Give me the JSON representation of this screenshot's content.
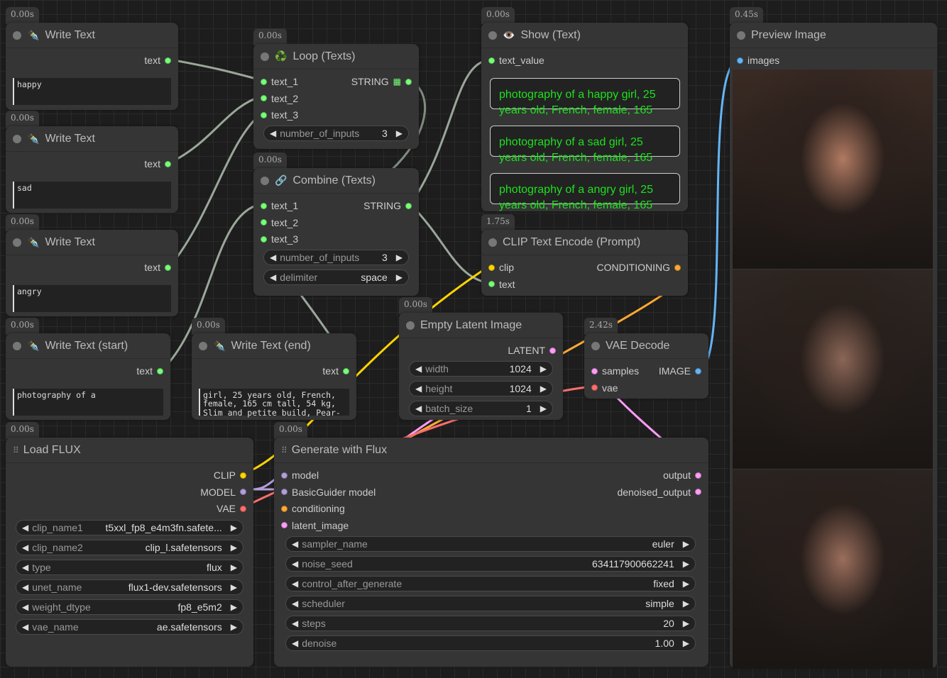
{
  "colors": {
    "string": "#77ff77",
    "clip": "#ffd500",
    "model": "#b39ddb",
    "vae": "#ff6e6e",
    "conditioning": "#ffa931",
    "latent": "#ff9cf9",
    "image": "#64b5f6"
  },
  "nodes": [
    {
      "id": "write_text_1",
      "title": "Write Text",
      "icon": "pen-nib-icon",
      "time": "0.00s",
      "inputs": [],
      "outputs": [
        {
          "label": "text",
          "type": "string"
        }
      ],
      "textarea": "happy"
    },
    {
      "id": "write_text_2",
      "title": "Write Text",
      "icon": "pen-nib-icon",
      "time": "0.00s",
      "inputs": [],
      "outputs": [
        {
          "label": "text",
          "type": "string"
        }
      ],
      "textarea": "sad"
    },
    {
      "id": "write_text_3",
      "title": "Write Text",
      "icon": "pen-nib-icon",
      "time": "0.00s",
      "inputs": [],
      "outputs": [
        {
          "label": "text",
          "type": "string"
        }
      ],
      "textarea": "angry"
    },
    {
      "id": "write_text_start",
      "title": "Write Text (start)",
      "icon": "pen-nib-icon",
      "time": "0.00s",
      "inputs": [],
      "outputs": [
        {
          "label": "text",
          "type": "string"
        }
      ],
      "textarea": "photography of a"
    },
    {
      "id": "write_text_end",
      "title": "Write Text (end)",
      "icon": "pen-nib-icon",
      "time": "0.00s",
      "inputs": [],
      "outputs": [
        {
          "label": "text",
          "type": "string"
        }
      ],
      "textarea": "girl, 25 years old, French, female, 165 cm tall, 54 kg, Slim and petite build, Pear-"
    },
    {
      "id": "loop_texts",
      "title": "Loop (Texts)",
      "icon": "recycle-icon",
      "time": "0.00s",
      "inputs": [
        {
          "label": "text_1",
          "type": "string"
        },
        {
          "label": "text_2",
          "type": "string"
        },
        {
          "label": "text_3",
          "type": "string"
        }
      ],
      "outputs": [
        {
          "label": "STRING",
          "type": "string",
          "list": true
        }
      ],
      "widgets": [
        {
          "label": "number_of_inputs",
          "value": "3"
        }
      ]
    },
    {
      "id": "combine_texts",
      "title": "Combine (Texts)",
      "icon": "link-icon",
      "time": "0.00s",
      "inputs": [
        {
          "label": "text_1",
          "type": "string"
        },
        {
          "label": "text_2",
          "type": "string"
        },
        {
          "label": "text_3",
          "type": "string"
        }
      ],
      "outputs": [
        {
          "label": "STRING",
          "type": "string"
        }
      ],
      "widgets": [
        {
          "label": "number_of_inputs",
          "value": "3"
        },
        {
          "label": "delimiter",
          "value": "space"
        }
      ]
    },
    {
      "id": "show_text",
      "title": "Show (Text)",
      "icon": "eye-icon",
      "time": "0.00s",
      "inputs": [
        {
          "label": "text_value",
          "type": "string"
        }
      ],
      "outputs": [],
      "show": [
        {
          "line1": "photography of a happy girl, 25",
          "line2": "years old, French, female, 165"
        },
        {
          "line1": "photography of a sad girl, 25",
          "line2": "years old, French, female, 165"
        },
        {
          "line1": "photography of a angry girl, 25",
          "line2": "years old, French, female, 165"
        }
      ]
    },
    {
      "id": "clip_text_encode",
      "title": "CLIP Text Encode (Prompt)",
      "icon": "",
      "time": "1.75s",
      "inputs": [
        {
          "label": "clip",
          "type": "clip"
        },
        {
          "label": "text",
          "type": "string"
        }
      ],
      "outputs": [
        {
          "label": "CONDITIONING",
          "type": "conditioning"
        }
      ]
    },
    {
      "id": "empty_latent",
      "title": "Empty Latent Image",
      "icon": "",
      "time": "0.00s",
      "inputs": [],
      "outputs": [
        {
          "label": "LATENT",
          "type": "latent"
        }
      ],
      "widgets": [
        {
          "label": "width",
          "value": "1024"
        },
        {
          "label": "height",
          "value": "1024"
        },
        {
          "label": "batch_size",
          "value": "1"
        }
      ]
    },
    {
      "id": "vae_decode",
      "title": "VAE Decode",
      "icon": "",
      "time": "2.42s",
      "inputs": [
        {
          "label": "samples",
          "type": "latent"
        },
        {
          "label": "vae",
          "type": "vae"
        }
      ],
      "outputs": [
        {
          "label": "IMAGE",
          "type": "image"
        }
      ]
    },
    {
      "id": "preview_image",
      "title": "Preview Image",
      "icon": "",
      "time": "0.45s",
      "inputs": [
        {
          "label": "images",
          "type": "image"
        }
      ],
      "outputs": [],
      "images": 3
    },
    {
      "id": "load_flux",
      "title": "Load FLUX",
      "icon": "grid",
      "time": "0.00s",
      "inputs": [],
      "outputs": [
        {
          "label": "CLIP",
          "type": "clip"
        },
        {
          "label": "MODEL",
          "type": "model"
        },
        {
          "label": "VAE",
          "type": "vae"
        }
      ],
      "widgets": [
        {
          "label": "clip_name1",
          "value": "t5xxl_fp8_e4m3fn.safete..."
        },
        {
          "label": "clip_name2",
          "value": "clip_l.safetensors"
        },
        {
          "label": "type",
          "value": "flux"
        },
        {
          "label": "unet_name",
          "value": "flux1-dev.safetensors"
        },
        {
          "label": "weight_dtype",
          "value": "fp8_e5m2"
        },
        {
          "label": "vae_name",
          "value": "ae.safetensors"
        }
      ]
    },
    {
      "id": "generate_flux",
      "title": "Generate with Flux",
      "icon": "grid",
      "time": "0.00s",
      "inputs": [
        {
          "label": "model",
          "type": "model"
        },
        {
          "label": "BasicGuider model",
          "type": "model"
        },
        {
          "label": "conditioning",
          "type": "conditioning"
        },
        {
          "label": "latent_image",
          "type": "latent"
        }
      ],
      "outputs": [
        {
          "label": "output",
          "type": "latent"
        },
        {
          "label": "denoised_output",
          "type": "latent"
        }
      ],
      "widgets": [
        {
          "label": "sampler_name",
          "value": "euler"
        },
        {
          "label": "noise_seed",
          "value": "634117900662241"
        },
        {
          "label": "control_after_generate",
          "value": "fixed"
        },
        {
          "label": "scheduler",
          "value": "simple"
        },
        {
          "label": "steps",
          "value": "20"
        },
        {
          "label": "denoise",
          "value": "1.00"
        }
      ]
    }
  ]
}
